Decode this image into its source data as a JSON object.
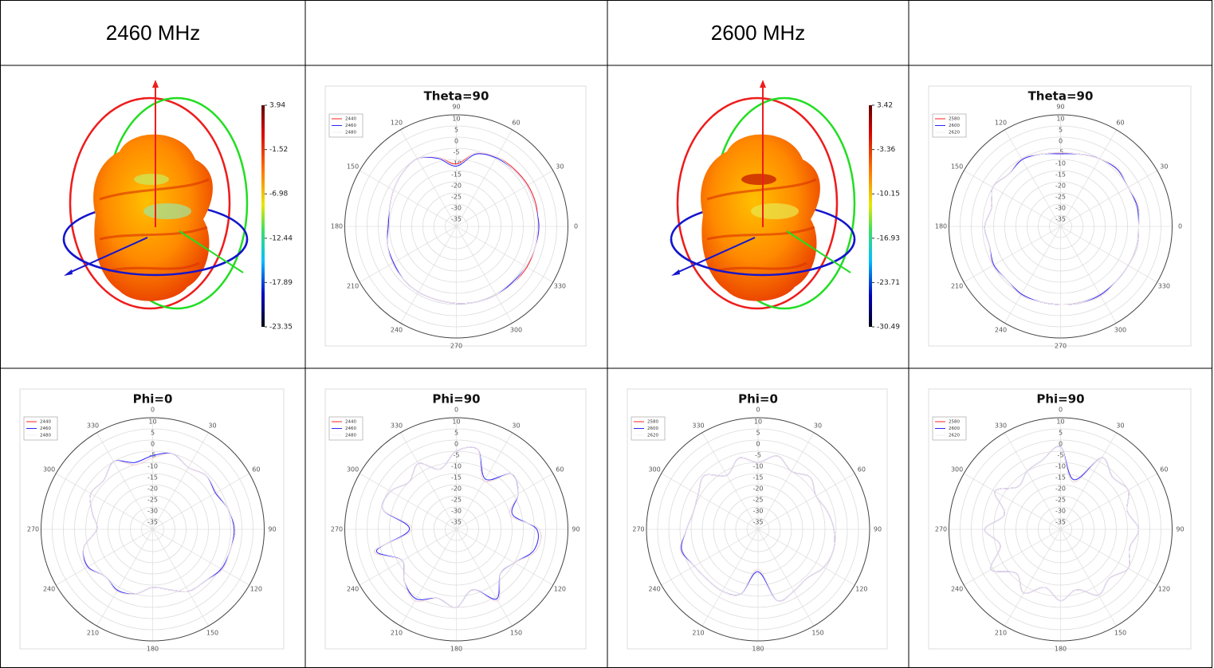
{
  "table": {
    "header": [
      "2460 MHz",
      "2600 MHz"
    ]
  },
  "patterns_3d": [
    {
      "colorbar_ticks": [
        3.94,
        -1.52,
        -6.98,
        -12.44,
        -17.89,
        -23.35
      ]
    },
    {
      "colorbar_ticks": [
        3.42,
        -3.36,
        -10.15,
        -16.93,
        -23.71,
        -30.49
      ]
    }
  ],
  "chart_data": [
    {
      "type": "polar",
      "title": "Theta=90",
      "zero": "right",
      "direction": "counterclockwise",
      "angles": [
        0,
        15,
        30,
        45,
        60,
        75,
        90,
        105,
        120,
        135,
        150,
        165,
        180,
        195,
        210,
        225,
        240,
        255,
        270,
        285,
        300,
        315,
        330,
        345
      ],
      "angle_ticks": [
        0,
        30,
        60,
        90,
        120,
        150,
        180,
        210,
        240,
        270,
        300,
        330
      ],
      "rlim": [
        -40,
        10
      ],
      "rticks": [
        10,
        5,
        0,
        -5,
        -10,
        -15,
        -20,
        -25,
        -30,
        -35
      ],
      "series": [
        {
          "name": "2440",
          "color": "#ff2020",
          "values": [
            -3.5,
            -3,
            -3,
            -3.5,
            -4,
            -6,
            -12,
            -8,
            -5,
            -6,
            -7.5,
            -9,
            -9,
            -8,
            -7,
            -6.5,
            -6,
            -6,
            -5.5,
            -5,
            -4.5,
            -4,
            -3.5,
            -3.5
          ]
        },
        {
          "name": "2460",
          "color": "#2828ff",
          "values": [
            -3,
            -3.5,
            -3.5,
            -4,
            -4.5,
            -6.5,
            -13,
            -8.5,
            -5,
            -6,
            -7.5,
            -9,
            -9.5,
            -8,
            -7.5,
            -6.5,
            -6,
            -6,
            -5.5,
            -5,
            -4.5,
            -4.5,
            -4,
            -3.5
          ]
        },
        {
          "name": "2480",
          "color": "#f0f0f0",
          "values": [
            -3.5,
            -3.5,
            -3.5,
            -4,
            -4,
            -6,
            -12.5,
            -8,
            -5,
            -6,
            -7.5,
            -9,
            -9,
            -8,
            -7,
            -6.5,
            -6,
            -6,
            -5.5,
            -5,
            -4.5,
            -4,
            -4,
            -3.5
          ]
        }
      ]
    },
    {
      "type": "polar",
      "title": "Theta=90",
      "zero": "right",
      "direction": "counterclockwise",
      "angles": [
        0,
        15,
        30,
        45,
        60,
        75,
        90,
        105,
        120,
        135,
        150,
        165,
        180,
        195,
        210,
        225,
        240,
        255,
        270,
        285,
        300,
        315,
        330,
        345
      ],
      "angle_ticks": [
        0,
        30,
        60,
        90,
        120,
        150,
        180,
        210,
        240,
        270,
        300,
        330
      ],
      "rlim": [
        -40,
        10
      ],
      "rticks": [
        10,
        5,
        0,
        -5,
        -10,
        -15,
        -20,
        -25,
        -30,
        -35
      ],
      "series": [
        {
          "name": "2580",
          "color": "#ff2020",
          "values": [
            -5,
            -4,
            -5,
            -3.5,
            -5,
            -6.5,
            -7,
            -6.5,
            -5,
            -7,
            -5,
            -8,
            -6,
            -7,
            -5,
            -6,
            -4.5,
            -5,
            -5,
            -4.5,
            -4,
            -5,
            -5,
            -4.5
          ]
        },
        {
          "name": "2600",
          "color": "#2828ff",
          "values": [
            -5,
            -4.5,
            -5,
            -4,
            -5,
            -6.5,
            -7.5,
            -6.5,
            -5.5,
            -7,
            -5,
            -8,
            -6,
            -7,
            -5.5,
            -6,
            -5,
            -5,
            -5,
            -4.5,
            -4.5,
            -5,
            -5,
            -4.5
          ]
        },
        {
          "name": "2620",
          "color": "#f0f0f0",
          "values": [
            -5,
            -4,
            -5,
            -3.5,
            -5,
            -6.5,
            -7,
            -6.5,
            -5,
            -7,
            -5,
            -8,
            -6,
            -7,
            -5,
            -6,
            -4.5,
            -5,
            -5,
            -4.5,
            -4,
            -5,
            -5,
            -4.5
          ]
        }
      ]
    },
    {
      "type": "polar",
      "title": "Phi=0",
      "zero": "top",
      "direction": "clockwise",
      "angles": [
        0,
        15,
        30,
        45,
        60,
        75,
        90,
        105,
        120,
        135,
        150,
        165,
        180,
        195,
        210,
        225,
        240,
        255,
        270,
        285,
        300,
        315,
        330,
        345
      ],
      "angle_ticks": [
        0,
        30,
        60,
        90,
        120,
        150,
        180,
        210,
        240,
        270,
        300,
        330
      ],
      "rlim": [
        -40,
        10
      ],
      "rticks": [
        10,
        5,
        0,
        -5,
        -10,
        -15,
        -20,
        -25,
        -30,
        -35
      ],
      "series": [
        {
          "name": "2440",
          "color": "#ff2020",
          "values": [
            -8,
            -5,
            -8,
            -6,
            -7,
            -5,
            -3,
            -4,
            -4,
            -7,
            -8,
            -12,
            -14,
            -10,
            -8,
            -10,
            -6,
            -8,
            -15,
            -12,
            -8,
            -9,
            -5,
            -10
          ]
        },
        {
          "name": "2460",
          "color": "#2828ff",
          "values": [
            -7,
            -5,
            -8,
            -6,
            -7.5,
            -5,
            -3.5,
            -4,
            -4.5,
            -7,
            -8,
            -12,
            -14,
            -10,
            -8.5,
            -10,
            -6.5,
            -8,
            -15,
            -12,
            -8,
            -9,
            -5,
            -9
          ]
        },
        {
          "name": "2480",
          "color": "#f0f0f0",
          "values": [
            -8,
            -5,
            -8,
            -6,
            -7,
            -5,
            -3,
            -4,
            -4,
            -7,
            -8,
            -12,
            -14,
            -10,
            -8,
            -10,
            -6,
            -8,
            -15,
            -12,
            -8,
            -9,
            -5,
            -10
          ]
        }
      ]
    },
    {
      "type": "polar",
      "title": "Phi=90",
      "zero": "top",
      "direction": "clockwise",
      "angles": [
        0,
        15,
        30,
        45,
        60,
        75,
        90,
        105,
        120,
        135,
        150,
        165,
        180,
        195,
        210,
        225,
        240,
        255,
        270,
        285,
        300,
        315,
        330,
        345
      ],
      "angle_ticks": [
        0,
        30,
        60,
        90,
        120,
        150,
        180,
        210,
        240,
        270,
        300,
        330
      ],
      "rlim": [
        -40,
        10
      ],
      "rticks": [
        10,
        5,
        0,
        -5,
        -10,
        -15,
        -20,
        -25,
        -30,
        -35
      ],
      "series": [
        {
          "name": "2440",
          "color": "#ff2020",
          "values": [
            -5,
            -3,
            -15,
            -5,
            -8,
            -15,
            -3,
            -3,
            -10,
            -12,
            -3,
            -12,
            -5,
            -8,
            -3,
            -7,
            -12,
            -2,
            -20,
            -6,
            -6,
            -10,
            -6,
            -12
          ]
        },
        {
          "name": "2460",
          "color": "#2828ff",
          "values": [
            -5,
            -3,
            -14,
            -5,
            -8,
            -14,
            -4,
            -4,
            -10,
            -12,
            -4,
            -12,
            -5,
            -8,
            -4,
            -7,
            -12,
            -3,
            -19,
            -6,
            -6,
            -10,
            -6,
            -12
          ]
        },
        {
          "name": "2480",
          "color": "#f0f0f0",
          "values": [
            -5,
            -3,
            -15,
            -5,
            -8,
            -15,
            -3,
            -3,
            -10,
            -12,
            -3,
            -12,
            -5,
            -8,
            -3,
            -7,
            -12,
            -2,
            -20,
            -6,
            -6,
            -10,
            -6,
            -12
          ]
        }
      ]
    },
    {
      "type": "polar",
      "title": "Phi=0",
      "zero": "top",
      "direction": "clockwise",
      "angles": [
        0,
        15,
        30,
        45,
        60,
        75,
        90,
        105,
        120,
        135,
        150,
        165,
        180,
        195,
        210,
        225,
        240,
        255,
        270,
        285,
        300,
        315,
        330,
        345
      ],
      "angle_ticks": [
        0,
        30,
        60,
        90,
        120,
        150,
        180,
        210,
        240,
        270,
        300,
        330
      ],
      "rlim": [
        -40,
        10
      ],
      "rticks": [
        10,
        5,
        0,
        -5,
        -10,
        -15,
        -20,
        -25,
        -30,
        -35
      ],
      "series": [
        {
          "name": "2580",
          "color": "#ff2020",
          "values": [
            -10,
            -6,
            -10,
            -7,
            -10,
            -8,
            -6,
            -5,
            -6,
            -9,
            -8,
            -7,
            -22,
            -10,
            -8,
            -8,
            -7,
            -4,
            -8,
            -10,
            -9,
            -6,
            -12,
            -7
          ]
        },
        {
          "name": "2600",
          "color": "#2828ff",
          "values": [
            -10,
            -6,
            -10,
            -7,
            -10,
            -8,
            -6,
            -5,
            -6,
            -9,
            -8,
            -7,
            -21,
            -10,
            -8,
            -8,
            -7,
            -4.5,
            -8,
            -10,
            -9,
            -6,
            -12,
            -7
          ]
        },
        {
          "name": "2620",
          "color": "#f0f0f0",
          "values": [
            -10,
            -6,
            -10,
            -7,
            -10,
            -8,
            -6,
            -5,
            -6,
            -9,
            -8,
            -7,
            -22,
            -10,
            -8,
            -8,
            -7,
            -4,
            -8,
            -10,
            -9,
            -6,
            -12,
            -7
          ]
        }
      ]
    },
    {
      "type": "polar",
      "title": "Phi=90",
      "zero": "top",
      "direction": "clockwise",
      "angles": [
        0,
        15,
        30,
        45,
        60,
        75,
        90,
        105,
        120,
        135,
        150,
        165,
        180,
        195,
        210,
        225,
        240,
        255,
        270,
        285,
        300,
        315,
        330,
        345
      ],
      "angle_ticks": [
        0,
        30,
        60,
        90,
        120,
        150,
        180,
        210,
        240,
        270,
        300,
        330
      ],
      "rlim": [
        -40,
        10
      ],
      "rticks": [
        10,
        5,
        0,
        -5,
        -10,
        -15,
        -20,
        -25,
        -30,
        -35
      ],
      "series": [
        {
          "name": "2580",
          "color": "#ff2020",
          "values": [
            -3,
            -18,
            -3,
            -7,
            -5,
            -9,
            -5,
            -8,
            -5,
            -9,
            -6,
            -12,
            -8,
            -13,
            -7,
            -12,
            -4,
            -12,
            -6,
            -14,
            -6,
            -13,
            -10,
            -8
          ]
        },
        {
          "name": "2600",
          "color": "#2828ff",
          "values": [
            -3,
            -17,
            -3,
            -7,
            -5,
            -9,
            -5,
            -8,
            -5,
            -9,
            -6,
            -12,
            -8,
            -13,
            -7,
            -12,
            -4,
            -12,
            -6,
            -14,
            -6,
            -13,
            -10,
            -8
          ]
        },
        {
          "name": "2620",
          "color": "#f0f0f0",
          "values": [
            -3,
            -18,
            -3,
            -7,
            -5,
            -9,
            -5,
            -8,
            -5,
            -9,
            -6,
            -12,
            -8,
            -13,
            -7,
            -12,
            -4,
            -12,
            -6,
            -14,
            -6,
            -13,
            -10,
            -8
          ]
        }
      ]
    }
  ]
}
